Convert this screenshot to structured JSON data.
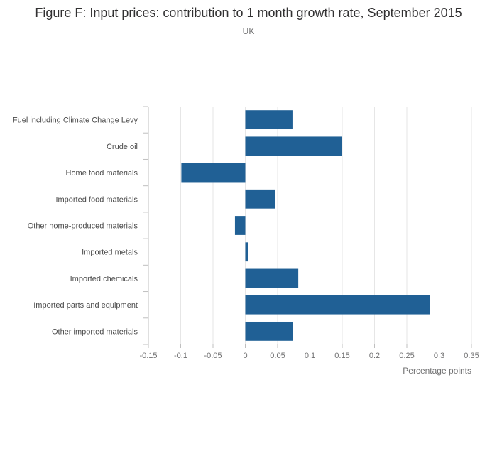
{
  "chart_data": {
    "type": "bar",
    "orientation": "horizontal",
    "title": "Figure F: Input prices: contribution to 1 month growth rate, September 2015",
    "subtitle": "UK",
    "xlabel": "Percentage points",
    "ylabel": "",
    "xlim": [
      -0.15,
      0.35
    ],
    "xticks": [
      -0.15,
      -0.1,
      -0.05,
      0,
      0.05,
      0.1,
      0.15,
      0.2,
      0.25,
      0.3,
      0.35
    ],
    "xtick_labels": [
      "-0.15",
      "-0.1",
      "-0.05",
      "0",
      "0.05",
      "0.1",
      "0.15",
      "0.2",
      "0.25",
      "0.3",
      "0.35"
    ],
    "grid": true,
    "legend": "none",
    "categories": [
      "Fuel including Climate Change Levy",
      "Crude oil",
      "Home food materials",
      "Imported food materials",
      "Other home-produced materials",
      "Imported metals",
      "Imported chemicals",
      "Imported parts and equipment",
      "Other imported materials"
    ],
    "values": [
      0.073,
      0.149,
      -0.099,
      0.046,
      -0.016,
      0.004,
      0.082,
      0.286,
      0.074
    ],
    "colors": {
      "bar": "#206095",
      "grid": "#e6e6e6",
      "axis": "#bfbfbf"
    }
  }
}
